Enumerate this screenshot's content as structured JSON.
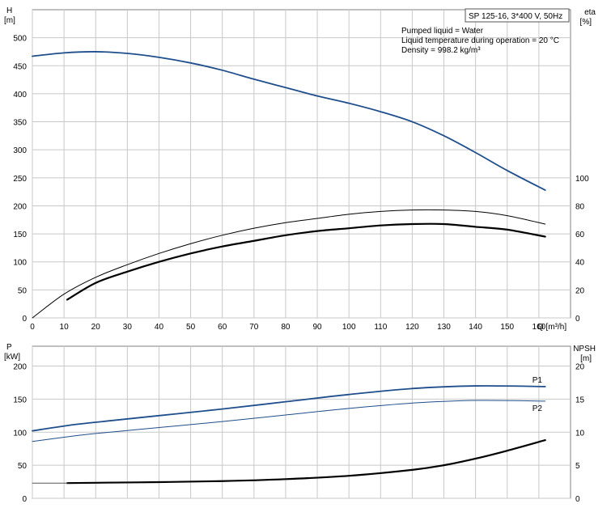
{
  "title_box": "SP 125-16, 3*400 V, 50Hz",
  "info": {
    "liquid": "Pumped liquid = Water",
    "temperature": "Liquid temperature during operation = 20 °C",
    "density": "Density = 998.2 kg/m³"
  },
  "chart_data": [
    {
      "type": "line",
      "panel": "top",
      "x_axis": {
        "label": "Q [m³/h]",
        "range": [
          0,
          170
        ],
        "ticks": [
          0,
          10,
          20,
          30,
          40,
          50,
          60,
          70,
          80,
          90,
          100,
          110,
          120,
          130,
          140,
          150,
          160
        ]
      },
      "y_left": {
        "label_line1": "H",
        "label_line2": "[m]",
        "range": [
          0,
          550
        ],
        "ticks": [
          0,
          50,
          100,
          150,
          200,
          250,
          300,
          350,
          400,
          450,
          500
        ]
      },
      "y_right": {
        "label_line1": "eta",
        "label_line2": "[%]",
        "range": [
          0,
          220
        ],
        "ticks": [
          0,
          20,
          40,
          60,
          80,
          100
        ]
      },
      "series": [
        {
          "axis": "left",
          "color": "#1f4e8c",
          "width": 1.8,
          "x": [
            0,
            10,
            20,
            30,
            40,
            50,
            60,
            70,
            80,
            90,
            100,
            110,
            120,
            130,
            140,
            150,
            162
          ],
          "y": [
            467,
            473,
            475,
            472,
            465,
            455,
            442,
            426,
            411,
            396,
            383,
            368,
            350,
            325,
            295,
            263,
            228
          ]
        },
        {
          "axis": "right",
          "color": "#000000",
          "width": 1,
          "x": [
            0,
            10,
            20,
            30,
            40,
            50,
            60,
            70,
            80,
            90,
            100,
            110,
            120,
            130,
            140,
            150,
            162
          ],
          "y": [
            0,
            17,
            29,
            38,
            46,
            53,
            59,
            64,
            68,
            71,
            74,
            76,
            77,
            77,
            76,
            73,
            67
          ]
        },
        {
          "axis": "right",
          "color": "#000000",
          "width": 2.2,
          "x": [
            11,
            20,
            30,
            40,
            50,
            60,
            70,
            80,
            90,
            100,
            110,
            120,
            130,
            140,
            150,
            162
          ],
          "y": [
            13,
            25,
            33,
            40,
            46,
            51,
            55,
            59,
            62,
            64,
            66,
            67,
            67,
            65,
            63,
            58
          ]
        }
      ]
    },
    {
      "type": "line",
      "panel": "bottom",
      "x_axis": {
        "range": [
          0,
          170
        ],
        "ticks": [
          0,
          10,
          20,
          30,
          40,
          50,
          60,
          70,
          80,
          90,
          100,
          110,
          120,
          130,
          140,
          150,
          160
        ]
      },
      "y_left": {
        "label_line1": "P",
        "label_line2": "[kW]",
        "range": [
          0,
          230
        ],
        "ticks": [
          0,
          50,
          100,
          150,
          200
        ]
      },
      "y_right": {
        "label_line1": "NPSH",
        "label_line2": "[m]",
        "range": [
          0,
          23
        ],
        "ticks": [
          0,
          5,
          10,
          15,
          20
        ]
      },
      "series": [
        {
          "label": "P1",
          "axis": "left",
          "color": "#1f4e8c",
          "width": 1.8,
          "x": [
            0,
            11,
            20,
            40,
            60,
            80,
            100,
            120,
            140,
            162
          ],
          "y": [
            102,
            110,
            115,
            125,
            135,
            146,
            157,
            166,
            170,
            169
          ]
        },
        {
          "label": "P2",
          "axis": "left",
          "color": "#1f4e8c",
          "width": 1,
          "x": [
            0,
            11,
            20,
            40,
            60,
            80,
            100,
            120,
            140,
            162
          ],
          "y": [
            86,
            93,
            98,
            107,
            116,
            126,
            136,
            144,
            148,
            147
          ]
        },
        {
          "axis": "right",
          "color": "#000000",
          "width": 2.2,
          "x": [
            11,
            20,
            40,
            60,
            80,
            100,
            120,
            130,
            140,
            150,
            162
          ],
          "y": [
            2.3,
            2.35,
            2.45,
            2.6,
            2.9,
            3.4,
            4.3,
            5.0,
            6.0,
            7.2,
            8.8
          ]
        },
        {
          "axis": "right",
          "color": "#555555",
          "width": 1,
          "x": [
            0,
            11
          ],
          "y": [
            2.3,
            2.3
          ]
        }
      ]
    }
  ]
}
